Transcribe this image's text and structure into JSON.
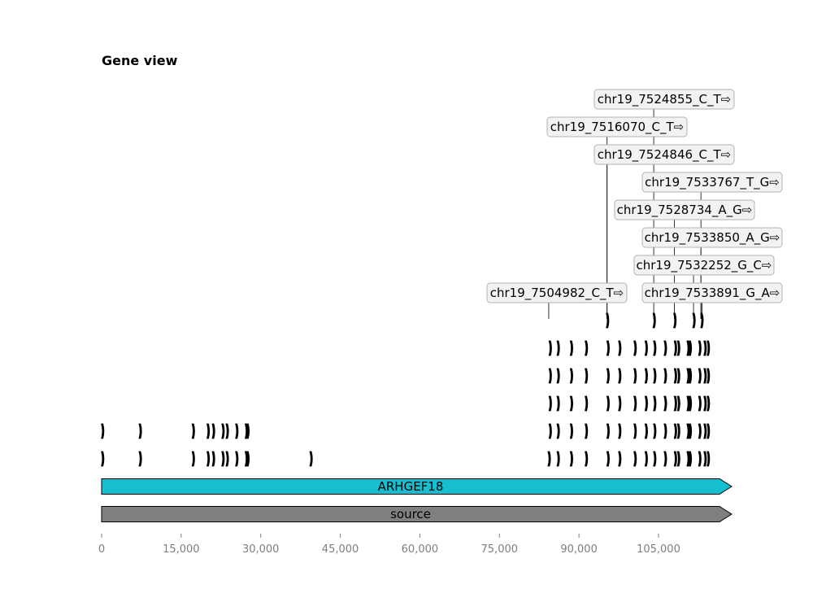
{
  "chart_data": {
    "type": "gene-track",
    "title": "Gene view",
    "xlim": [
      0,
      116500
    ],
    "x_ticks": [
      "0",
      "15,000",
      "30,000",
      "45,000",
      "60,000",
      "75,000",
      "90,000",
      "105,000"
    ],
    "x_tick_values": [
      0,
      15000,
      30000,
      45000,
      60000,
      75000,
      90000,
      105000
    ],
    "features": [
      {
        "label": "ARHGEF18",
        "start": 0,
        "end": 116500,
        "color": "#17becf"
      },
      {
        "label": "source",
        "start": 0,
        "end": 116500,
        "color": "#808080"
      }
    ],
    "variants": [
      {
        "label": "chr19_7504982_C_T⇨",
        "pos": 84300
      },
      {
        "label": "chr19_7516070_C_T⇨",
        "pos": 95300
      },
      {
        "label": "chr19_7524846_C_T⇨",
        "pos": 95300
      },
      {
        "label": "chr19_7524855_C_T⇨",
        "pos": 104100
      },
      {
        "label": "chr19_7528734_A_G⇨",
        "pos": 108000
      },
      {
        "label": "chr19_7532252_G_C⇨",
        "pos": 111600
      },
      {
        "label": "chr19_7533767_T_G⇨",
        "pos": 113000
      },
      {
        "label": "chr19_7533850_A_G⇨",
        "pos": 113000
      },
      {
        "label": "chr19_7533891_G_A⇨",
        "pos": 113200
      }
    ],
    "exon_rows": [
      [
        95300,
        104100,
        108000,
        111600,
        113100
      ],
      [
        84500,
        86000,
        88500,
        91300,
        95400,
        97600,
        100500,
        102600,
        104200,
        106200,
        108100,
        108700,
        110500,
        110900,
        112700,
        113700,
        114300
      ],
      [
        84500,
        86000,
        88500,
        91300,
        95400,
        97600,
        100500,
        102600,
        104200,
        106200,
        108100,
        108700,
        110500,
        110900,
        112700,
        113700,
        114300
      ],
      [
        84500,
        86000,
        88500,
        91300,
        95400,
        97600,
        100500,
        102600,
        104200,
        106200,
        108100,
        108700,
        110500,
        110900,
        112700,
        113700,
        114300
      ],
      [
        100,
        7200,
        17200,
        20000,
        21000,
        22800,
        23600,
        25400,
        27200,
        27500,
        84500,
        86000,
        88500,
        91300,
        95400,
        97600,
        100500,
        102600,
        104200,
        106200,
        108100,
        108700,
        110500,
        110900,
        112700,
        113700,
        114300
      ],
      [
        100,
        7200,
        17200,
        20000,
        21000,
        22800,
        23600,
        25400,
        27200,
        27500,
        39400,
        84300,
        86000,
        88500,
        91300,
        95400,
        97600,
        100500,
        102600,
        104200,
        106200,
        108100,
        108700,
        110500,
        110900,
        112700,
        113700,
        114300
      ]
    ],
    "colors": {
      "label_box_fill": "#f2f2f2",
      "label_box_stroke": "#b3b3b3",
      "exon": "#000000",
      "tick_text": "#7f7f7f"
    }
  }
}
